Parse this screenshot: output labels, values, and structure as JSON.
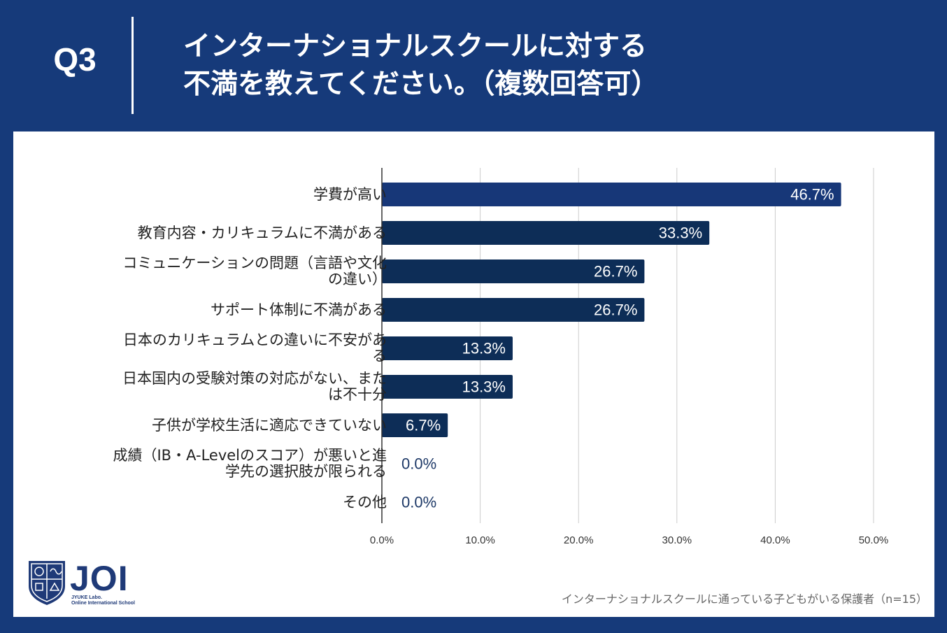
{
  "header": {
    "question_label": "Q3",
    "title_line1": "インターナショナルスクールに対する",
    "title_line2": "不満を教えてください。（複数回答可）"
  },
  "colors": {
    "background": "#163a7a",
    "bar_highlight": "#173778",
    "bar": "#0d2d57",
    "zero_label": "#1f3a68",
    "grid": "#cccccc"
  },
  "chart_data": {
    "type": "bar",
    "orientation": "horizontal",
    "categories": [
      [
        "学費が高い"
      ],
      [
        "教育内容・カリキュラムに不満がある"
      ],
      [
        "コミュニケーションの問題（言語や文化",
        "の違い）"
      ],
      [
        "サポート体制に不満がある"
      ],
      [
        "日本のカリキュラムとの違いに不安があ",
        "る"
      ],
      [
        "日本国内の受験対策の対応がない、また",
        "は不十分"
      ],
      [
        "子供が学校生活に適応できていない"
      ],
      [
        "成績（IB・A-Levelのスコア）が悪いと進",
        "学先の選択肢が限られる"
      ],
      [
        "その他"
      ]
    ],
    "values": [
      46.7,
      33.3,
      26.7,
      26.7,
      13.3,
      13.3,
      6.7,
      0.0,
      0.0
    ],
    "value_labels": [
      "46.7%",
      "33.3%",
      "26.7%",
      "26.7%",
      "13.3%",
      "13.3%",
      "6.7%",
      "0.0%",
      "0.0%"
    ],
    "xlim": [
      0,
      50
    ],
    "xticks": [
      0,
      10,
      20,
      30,
      40,
      50
    ],
    "xtick_labels": [
      "0.0%",
      "10.0%",
      "20.0%",
      "30.0%",
      "40.0%",
      "50.0%"
    ],
    "grid": true,
    "title": "",
    "xlabel": "",
    "ylabel": ""
  },
  "logo": {
    "name": "JOI",
    "sub1": "JYUKE Labo.",
    "sub2": "Online International School"
  },
  "footnote": "インターナショナルスクールに通っている子どもがいる保護者（n=15）"
}
